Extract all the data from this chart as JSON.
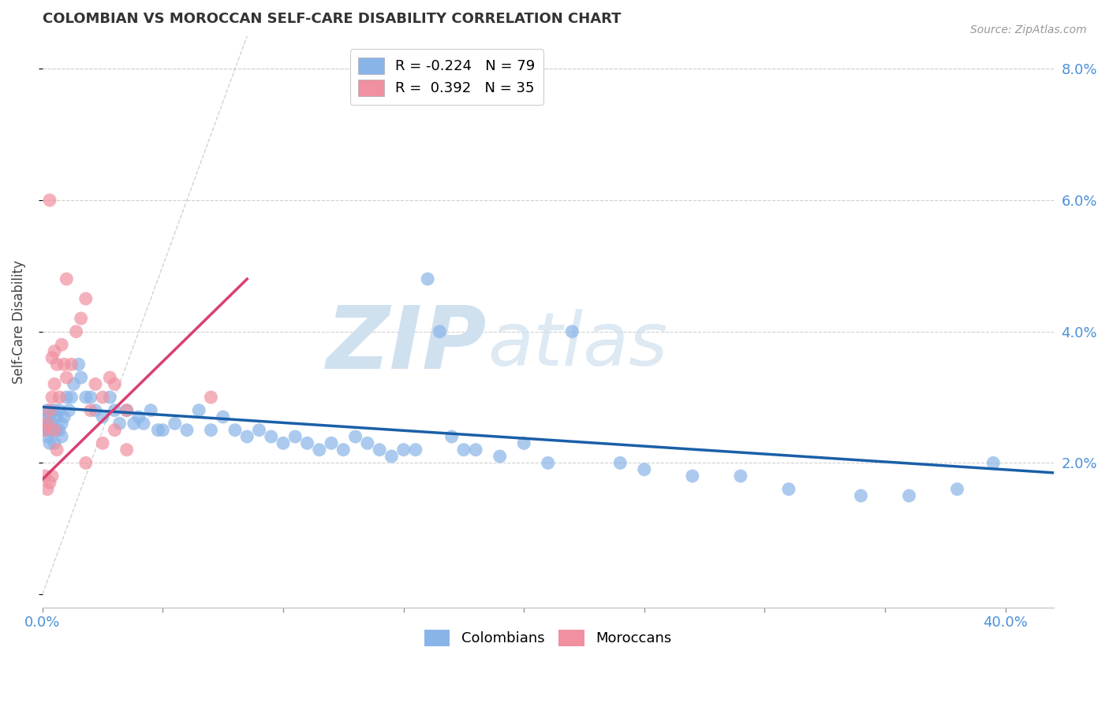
{
  "title": "COLOMBIAN VS MOROCCAN SELF-CARE DISABILITY CORRELATION CHART",
  "source": "Source: ZipAtlas.com",
  "ylabel": "Self-Care Disability",
  "x_ticks": [
    0.0,
    0.05,
    0.1,
    0.15,
    0.2,
    0.25,
    0.3,
    0.35,
    0.4
  ],
  "y_ticks": [
    0.0,
    0.02,
    0.04,
    0.06,
    0.08
  ],
  "y_tick_labels": [
    "",
    "2.0%",
    "4.0%",
    "6.0%",
    "8.0%"
  ],
  "xlim": [
    0.0,
    0.42
  ],
  "ylim": [
    -0.002,
    0.085
  ],
  "col_R": -0.224,
  "col_N": 79,
  "mor_R": 0.392,
  "mor_N": 35,
  "col_color": "#89b4e8",
  "mor_color": "#f090a0",
  "col_line_color": "#1a5fa8",
  "mor_line_color": "#d94070",
  "ref_line_color": "#c8c8c8",
  "watermark_color": "#cfe0ef",
  "colombians_x": [
    0.001,
    0.001,
    0.002,
    0.002,
    0.002,
    0.003,
    0.003,
    0.003,
    0.004,
    0.004,
    0.005,
    0.005,
    0.005,
    0.006,
    0.006,
    0.007,
    0.007,
    0.008,
    0.008,
    0.009,
    0.01,
    0.011,
    0.012,
    0.013,
    0.015,
    0.016,
    0.018,
    0.02,
    0.022,
    0.025,
    0.028,
    0.03,
    0.032,
    0.035,
    0.038,
    0.04,
    0.042,
    0.045,
    0.048,
    0.05,
    0.055,
    0.06,
    0.065,
    0.07,
    0.075,
    0.08,
    0.085,
    0.09,
    0.095,
    0.1,
    0.105,
    0.11,
    0.115,
    0.12,
    0.125,
    0.13,
    0.135,
    0.14,
    0.145,
    0.15,
    0.155,
    0.16,
    0.165,
    0.17,
    0.175,
    0.18,
    0.19,
    0.2,
    0.21,
    0.22,
    0.24,
    0.25,
    0.27,
    0.29,
    0.31,
    0.34,
    0.36,
    0.38,
    0.395
  ],
  "colombians_y": [
    0.027,
    0.025,
    0.028,
    0.026,
    0.024,
    0.027,
    0.025,
    0.023,
    0.026,
    0.025,
    0.028,
    0.025,
    0.023,
    0.027,
    0.025,
    0.028,
    0.025,
    0.026,
    0.024,
    0.027,
    0.03,
    0.028,
    0.03,
    0.032,
    0.035,
    0.033,
    0.03,
    0.03,
    0.028,
    0.027,
    0.03,
    0.028,
    0.026,
    0.028,
    0.026,
    0.027,
    0.026,
    0.028,
    0.025,
    0.025,
    0.026,
    0.025,
    0.028,
    0.025,
    0.027,
    0.025,
    0.024,
    0.025,
    0.024,
    0.023,
    0.024,
    0.023,
    0.022,
    0.023,
    0.022,
    0.024,
    0.023,
    0.022,
    0.021,
    0.022,
    0.022,
    0.048,
    0.04,
    0.024,
    0.022,
    0.022,
    0.021,
    0.023,
    0.02,
    0.04,
    0.02,
    0.019,
    0.018,
    0.018,
    0.016,
    0.015,
    0.015,
    0.016,
    0.02
  ],
  "moroccans_x": [
    0.001,
    0.001,
    0.002,
    0.002,
    0.003,
    0.003,
    0.004,
    0.004,
    0.005,
    0.005,
    0.006,
    0.006,
    0.007,
    0.008,
    0.009,
    0.01,
    0.012,
    0.014,
    0.016,
    0.018,
    0.02,
    0.022,
    0.025,
    0.028,
    0.03,
    0.035,
    0.018,
    0.025,
    0.03,
    0.035,
    0.003,
    0.004,
    0.005,
    0.07,
    0.01
  ],
  "moroccans_y": [
    0.025,
    0.018,
    0.026,
    0.016,
    0.028,
    0.017,
    0.03,
    0.018,
    0.032,
    0.025,
    0.035,
    0.022,
    0.03,
    0.038,
    0.035,
    0.033,
    0.035,
    0.04,
    0.042,
    0.045,
    0.028,
    0.032,
    0.03,
    0.033,
    0.032,
    0.028,
    0.02,
    0.023,
    0.025,
    0.022,
    0.06,
    0.036,
    0.037,
    0.03,
    0.048
  ],
  "col_trendline_x": [
    0.0,
    0.42
  ],
  "col_trendline_y": [
    0.0285,
    0.0185
  ],
  "mor_trendline_x": [
    0.0,
    0.085
  ],
  "mor_trendline_y": [
    0.0175,
    0.048
  ],
  "ref_line_x": [
    0.0,
    0.085
  ],
  "ref_line_y": [
    0.0,
    0.085
  ]
}
